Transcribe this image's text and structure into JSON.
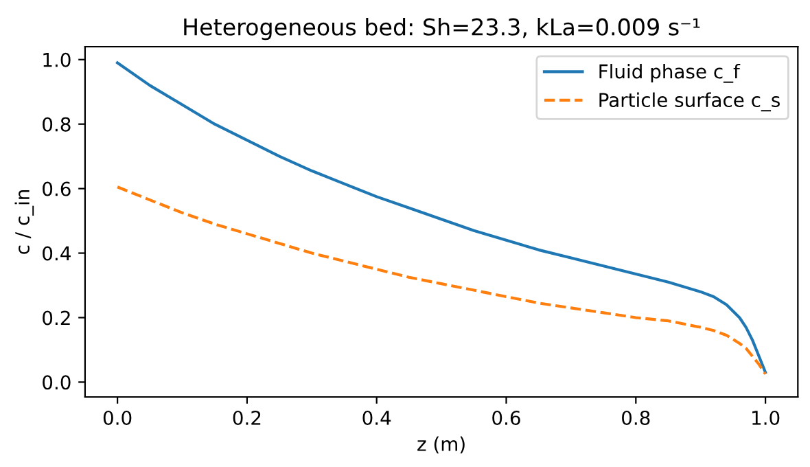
{
  "chart_data": {
    "type": "line",
    "title": "Heterogeneous bed: Sh=23.3, kLa=0.009 s⁻¹",
    "xlabel": "z (m)",
    "ylabel": "c / c_in",
    "x": [
      0,
      0.05,
      0.1,
      0.15,
      0.2,
      0.25,
      0.3,
      0.35,
      0.4,
      0.45,
      0.5,
      0.55,
      0.6,
      0.65,
      0.7,
      0.75,
      0.8,
      0.85,
      0.9,
      0.92,
      0.94,
      0.96,
      0.97,
      0.98,
      0.99,
      1.0
    ],
    "series": [
      {
        "name": "Fluid phase c_f",
        "color": "#1f77b4",
        "line_style": "solid",
        "values": [
          0.99,
          0.92,
          0.86,
          0.8,
          0.75,
          0.7,
          0.655,
          0.615,
          0.575,
          0.54,
          0.505,
          0.47,
          0.44,
          0.41,
          0.385,
          0.36,
          0.335,
          0.31,
          0.28,
          0.265,
          0.24,
          0.2,
          0.17,
          0.13,
          0.08,
          0.03
        ]
      },
      {
        "name": "Particle surface c_s",
        "color": "#ff7f0e",
        "line_style": "dashed",
        "values": [
          0.605,
          0.565,
          0.525,
          0.49,
          0.46,
          0.43,
          0.4,
          0.375,
          0.35,
          0.325,
          0.305,
          0.285,
          0.265,
          0.245,
          0.23,
          0.215,
          0.2,
          0.19,
          0.17,
          0.16,
          0.145,
          0.12,
          0.105,
          0.08,
          0.055,
          0.025
        ]
      }
    ],
    "xlim": [
      -0.05,
      1.05
    ],
    "ylim": [
      -0.046,
      1.04
    ],
    "xticks": [
      {
        "value": 0,
        "label": "0.0"
      },
      0.2,
      0.4,
      0.6,
      0.8,
      {
        "value": 1,
        "label": "1.0"
      }
    ],
    "yticks": [
      {
        "value": 0,
        "label": "0.0"
      },
      0.2,
      0.4,
      0.6,
      0.8,
      {
        "value": 1,
        "label": "1.0"
      }
    ],
    "grid": false,
    "legend": "top right"
  }
}
